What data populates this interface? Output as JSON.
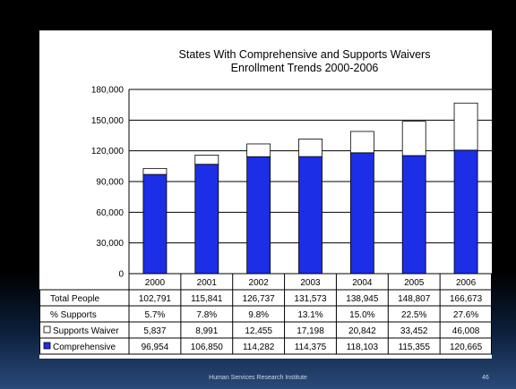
{
  "chart_data": {
    "type": "bar",
    "stacked": true,
    "title_lines": [
      "States With Comprehensive and Supports Waivers",
      "Enrollment Trends 2000-2006"
    ],
    "categories": [
      "2000",
      "2001",
      "2002",
      "2003",
      "2004",
      "2005",
      "2006"
    ],
    "series": [
      {
        "name": "Comprehensive",
        "color": "#1c2ee6",
        "values": [
          96954,
          106850,
          114282,
          114375,
          118103,
          115355,
          120665
        ],
        "display": [
          "96,954",
          "106,850",
          "114,282",
          "114,375",
          "118,103",
          "115,355",
          "120,665"
        ]
      },
      {
        "name": "Supports Waiver",
        "color": "#ffffff",
        "values": [
          5837,
          8991,
          12455,
          17198,
          20842,
          33452,
          46008
        ],
        "display": [
          "5,837",
          "8,991",
          "12,455",
          "17,198",
          "20,842",
          "33,452",
          "46,008"
        ]
      }
    ],
    "ylim": [
      0,
      180000
    ],
    "yticks": [
      0,
      30000,
      60000,
      90000,
      120000,
      150000,
      180000
    ],
    "ytick_labels": [
      "0",
      "30,000",
      "60,000",
      "90,000",
      "120,000",
      "150,000",
      "180,000"
    ],
    "grid": true,
    "data_table": {
      "rows": [
        {
          "label": "Total People",
          "values": [
            "102,791",
            "115,841",
            "126,737",
            "131,573",
            "138,945",
            "148,807",
            "166,673"
          ]
        },
        {
          "label": "% Supports",
          "values": [
            "5.7%",
            "7.8%",
            "9.8%",
            "13.1%",
            "15.0%",
            "22.5%",
            "27.6%"
          ]
        },
        {
          "label": "Supports Waiver",
          "series_key": 1
        },
        {
          "label": "Comprehensive",
          "series_key": 0
        }
      ]
    }
  },
  "footer": {
    "text": "Human Services Research Institute",
    "page": "46"
  },
  "colors": {
    "background": "#000000",
    "panel": "#ffffff",
    "grid": "#000000"
  }
}
